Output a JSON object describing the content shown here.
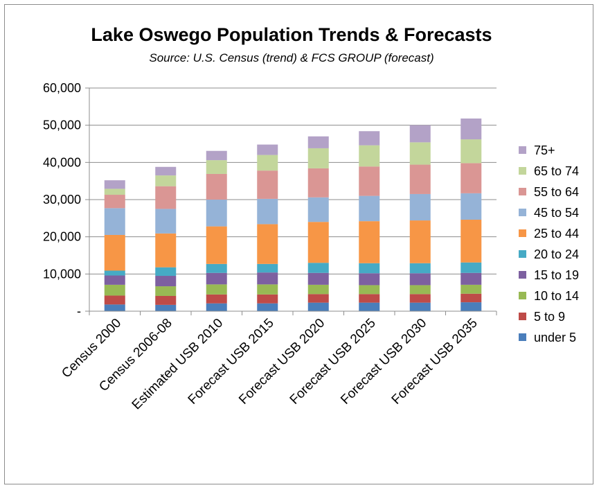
{
  "chart_data": {
    "type": "bar",
    "stacked": true,
    "title": "Lake Oswego Population Trends & Forecasts",
    "subtitle": "Source: U.S. Census (trend) & FCS GROUP (forecast)",
    "xlabel": "",
    "ylabel": "",
    "ylim": [
      0,
      60000
    ],
    "yticks": [
      0,
      10000,
      20000,
      30000,
      40000,
      50000,
      60000
    ],
    "ytick_labels": [
      "-",
      "10,000",
      "20,000",
      "30,000",
      "40,000",
      "50,000",
      "60,000"
    ],
    "grid": true,
    "legend_position": "right",
    "categories": [
      "Census 2000",
      "Census 2006-08",
      "Estimated  USB 2010",
      "Forecast USB 2015",
      "Forecast USB 2020",
      "Forecast USB 2025",
      "Forecast USB 2030",
      "Forecast USB 2035"
    ],
    "series": [
      {
        "name": "under 5",
        "color": "#4a7ebb",
        "values": [
          1800,
          1700,
          2100,
          2100,
          2300,
          2300,
          2300,
          2400
        ]
      },
      {
        "name": "5 to 9",
        "color": "#be4b48",
        "values": [
          2400,
          2400,
          2400,
          2400,
          2300,
          2300,
          2300,
          2300
        ]
      },
      {
        "name": "10 to 14",
        "color": "#98b954",
        "values": [
          2900,
          2600,
          2700,
          2700,
          2500,
          2400,
          2400,
          2400
        ]
      },
      {
        "name": "15 to 19",
        "color": "#7d60a0",
        "values": [
          2500,
          2800,
          3100,
          3200,
          3200,
          3200,
          3200,
          3200
        ]
      },
      {
        "name": "20 to 24",
        "color": "#46aac5",
        "values": [
          1300,
          2300,
          2400,
          2300,
          2700,
          2700,
          2700,
          2800
        ]
      },
      {
        "name": "25 to 44",
        "color": "#f79646",
        "values": [
          9600,
          9100,
          10100,
          10700,
          11000,
          11300,
          11500,
          11500
        ]
      },
      {
        "name": "45 to 54",
        "color": "#95b3d7",
        "values": [
          7200,
          6600,
          7200,
          6800,
          6600,
          6800,
          7100,
          7100
        ]
      },
      {
        "name": "55 to 64",
        "color": "#da9694",
        "values": [
          3600,
          6100,
          6900,
          7600,
          7800,
          7900,
          7900,
          8100
        ]
      },
      {
        "name": "65 to 74",
        "color": "#c3d69b",
        "values": [
          1600,
          2900,
          3700,
          4200,
          5400,
          5700,
          6000,
          6400
        ]
      },
      {
        "name": "75+",
        "color": "#b3a2c7",
        "values": [
          2300,
          2300,
          2500,
          2800,
          3200,
          3800,
          4600,
          5600
        ]
      }
    ]
  }
}
